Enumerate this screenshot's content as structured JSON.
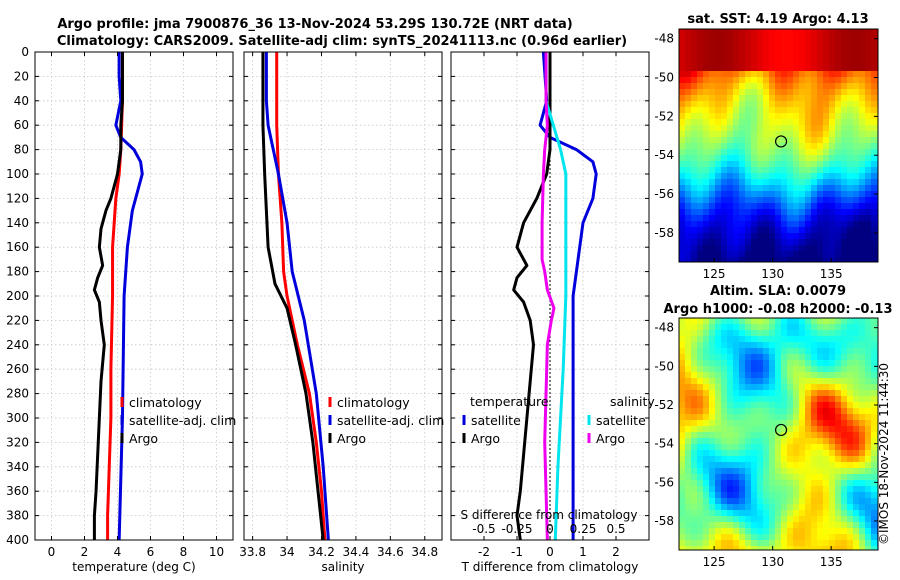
{
  "header": {
    "line1": "Argo profile: jma 7900876_36 13-Nov-2024 53.29S 130.72E (NRT data)",
    "line2": "Climatology: CARS2009. Satellite-adj clim: synTS_20241113.nc (0.96d earlier)"
  },
  "colors": {
    "climatology": "#ff0000",
    "satellite": "#0000dd",
    "argo": "#000000",
    "sat_salinity": "#00e5ee",
    "argo_salinity_diff": "#ee00ee"
  },
  "chart_data": [
    {
      "type": "line",
      "name": "temperature-profile",
      "xlabel": "temperature (deg C)",
      "xlim": [
        -1,
        11
      ],
      "ylim": [
        0,
        400
      ],
      "xticks": [
        "0",
        "2",
        "4",
        "6",
        "8",
        "10"
      ],
      "xtick_values": [
        0,
        2,
        4,
        6,
        8,
        10
      ],
      "yticks": [
        "0",
        "20",
        "40",
        "60",
        "80",
        "100",
        "120",
        "140",
        "160",
        "180",
        "200",
        "220",
        "240",
        "260",
        "280",
        "300",
        "320",
        "340",
        "360",
        "380",
        "400"
      ],
      "legend": [
        "climatology",
        "satellite-adj. clim",
        "Argo"
      ],
      "series": [
        {
          "name": "climatology",
          "color": "#ff0000",
          "depth": [
            0,
            40,
            80,
            100,
            120,
            140,
            160,
            200,
            260,
            300,
            340,
            380,
            400
          ],
          "values": [
            4.3,
            4.3,
            4.2,
            4.1,
            3.9,
            3.8,
            3.7,
            3.7,
            3.6,
            3.6,
            3.5,
            3.4,
            3.4
          ]
        },
        {
          "name": "satellite-adj. clim",
          "color": "#0000dd",
          "depth": [
            0,
            20,
            40,
            60,
            70,
            80,
            90,
            100,
            110,
            130,
            160,
            200,
            300,
            400
          ],
          "values": [
            4.1,
            4.1,
            4.2,
            3.9,
            4.2,
            5.0,
            5.4,
            5.5,
            5.3,
            4.9,
            4.6,
            4.4,
            4.3,
            4.1
          ]
        },
        {
          "name": "Argo",
          "color": "#000000",
          "depth": [
            0,
            40,
            60,
            80,
            100,
            120,
            130,
            145,
            160,
            175,
            185,
            195,
            205,
            220,
            240,
            270,
            300,
            330,
            360,
            380,
            400
          ],
          "values": [
            4.3,
            4.3,
            4.2,
            4.2,
            4.0,
            3.6,
            3.3,
            3.0,
            2.9,
            3.1,
            2.8,
            2.6,
            2.9,
            3.0,
            3.2,
            3.0,
            2.9,
            2.8,
            2.7,
            2.6,
            2.6
          ]
        }
      ]
    },
    {
      "type": "line",
      "name": "salinity-profile",
      "xlabel": "salinity",
      "xlim": [
        33.75,
        34.9
      ],
      "ylim": [
        0,
        400
      ],
      "xticks": [
        "33.8",
        "34",
        "34.2",
        "34.4",
        "34.6",
        "34.8"
      ],
      "xtick_values": [
        33.8,
        34.0,
        34.2,
        34.4,
        34.6,
        34.8
      ],
      "legend": [
        "climatology",
        "satellite-adj. clim",
        "Argo"
      ],
      "series": [
        {
          "name": "climatology",
          "color": "#ff0000",
          "depth": [
            0,
            60,
            100,
            140,
            180,
            200,
            240,
            280,
            320,
            360,
            400
          ],
          "values": [
            33.94,
            33.94,
            33.95,
            33.97,
            33.98,
            34.0,
            34.06,
            34.13,
            34.17,
            34.2,
            34.22
          ]
        },
        {
          "name": "satellite-adj. clim",
          "color": "#0000dd",
          "depth": [
            0,
            40,
            60,
            80,
            100,
            140,
            180,
            220,
            280,
            340,
            400
          ],
          "values": [
            33.88,
            33.88,
            33.89,
            33.92,
            33.95,
            34.0,
            34.03,
            34.1,
            34.17,
            34.21,
            34.24
          ]
        },
        {
          "name": "Argo",
          "color": "#000000",
          "depth": [
            0,
            60,
            100,
            130,
            160,
            190,
            210,
            240,
            280,
            320,
            360,
            400
          ],
          "values": [
            33.86,
            33.86,
            33.87,
            33.88,
            33.89,
            33.93,
            34.0,
            34.05,
            34.11,
            34.15,
            34.18,
            34.21
          ]
        }
      ]
    },
    {
      "type": "line",
      "name": "difference-profile",
      "xlabel": "T difference from climatology",
      "xlabel_top": "S difference from climatology",
      "xlim": [
        -3,
        3
      ],
      "ylim": [
        0,
        400
      ],
      "xticks": [
        "-2",
        "-1",
        "0",
        "1",
        "2"
      ],
      "xtick_values": [
        -2,
        -1,
        0,
        1,
        2
      ],
      "s_ticks": [
        "-0.5",
        "-0.25",
        "0",
        "0.25",
        "0.5"
      ],
      "s_tick_values": [
        -0.5,
        -0.25,
        0,
        0.25,
        0.5
      ],
      "legend_titles": [
        "temperature",
        "salinity"
      ],
      "legend_temperature": [
        "satellite",
        "Argo"
      ],
      "legend_salinity": [
        "satellite",
        "Argo"
      ],
      "series": [
        {
          "name": "T satellite",
          "color": "#0000dd",
          "depth": [
            0,
            40,
            60,
            70,
            80,
            90,
            100,
            120,
            140,
            160,
            200,
            300,
            400
          ],
          "values": [
            -0.2,
            -0.1,
            -0.3,
            0.0,
            0.8,
            1.3,
            1.4,
            1.3,
            1.0,
            0.9,
            0.7,
            0.7,
            0.7
          ]
        },
        {
          "name": "T Argo",
          "color": "#000000",
          "depth": [
            0,
            40,
            60,
            80,
            100,
            120,
            140,
            160,
            175,
            185,
            195,
            205,
            220,
            240,
            270,
            300,
            330,
            360,
            380,
            400
          ],
          "values": [
            0.0,
            0.0,
            0.0,
            0.0,
            -0.1,
            -0.4,
            -0.8,
            -1.0,
            -0.7,
            -1.0,
            -1.1,
            -0.8,
            -0.6,
            -0.5,
            -0.6,
            -0.7,
            -0.8,
            -0.9,
            -1.0,
            -0.9
          ]
        },
        {
          "name": "S satellite",
          "color": "#00e5ee",
          "depth": [
            0,
            40,
            80,
            100,
            140,
            200,
            260,
            300,
            340,
            400
          ],
          "values": [
            -0.03,
            -0.03,
            0.08,
            0.12,
            0.12,
            0.12,
            0.1,
            0.08,
            0.06,
            0.04
          ]
        },
        {
          "name": "S Argo",
          "color": "#ee00ee",
          "depth": [
            0,
            40,
            60,
            80,
            100,
            140,
            170,
            180,
            195,
            210,
            220,
            240,
            280,
            320,
            360,
            400
          ],
          "values": [
            -0.03,
            -0.03,
            -0.02,
            -0.04,
            -0.05,
            -0.06,
            -0.06,
            -0.04,
            -0.02,
            0.03,
            0.01,
            -0.02,
            -0.03,
            -0.04,
            -0.03,
            -0.02
          ]
        }
      ]
    },
    {
      "type": "heatmap",
      "name": "sst-map",
      "title": "sat. SST: 4.19 Argo: 4.13",
      "xlim": [
        122,
        139
      ],
      "ylim": [
        -59.5,
        -47.5
      ],
      "xticks": [
        "125",
        "130",
        "135"
      ],
      "xtick_values": [
        125,
        130,
        135
      ],
      "yticks": [
        "-48",
        "-50",
        "-52",
        "-54",
        "-56",
        "-58"
      ],
      "ytick_values": [
        -48,
        -50,
        -52,
        -54,
        -56,
        -58
      ],
      "marker": {
        "lon": 130.72,
        "lat": -53.29
      }
    },
    {
      "type": "heatmap",
      "name": "sla-map",
      "title_line1": "Altim. SLA: 0.0079",
      "title_line2": "Argo h1000: -0.08 h2000: -0.13",
      "xlim": [
        122,
        139
      ],
      "ylim": [
        -59.5,
        -47.5
      ],
      "xticks": [
        "125",
        "130",
        "135"
      ],
      "xtick_values": [
        125,
        130,
        135
      ],
      "yticks": [
        "-48",
        "-50",
        "-52",
        "-54",
        "-56",
        "-58"
      ],
      "ytick_values": [
        -48,
        -50,
        -52,
        -54,
        -56,
        -58
      ],
      "marker": {
        "lon": 130.72,
        "lat": -53.29
      }
    }
  ],
  "watermark": "©IMOS 18-Nov-2024 11:44:30"
}
